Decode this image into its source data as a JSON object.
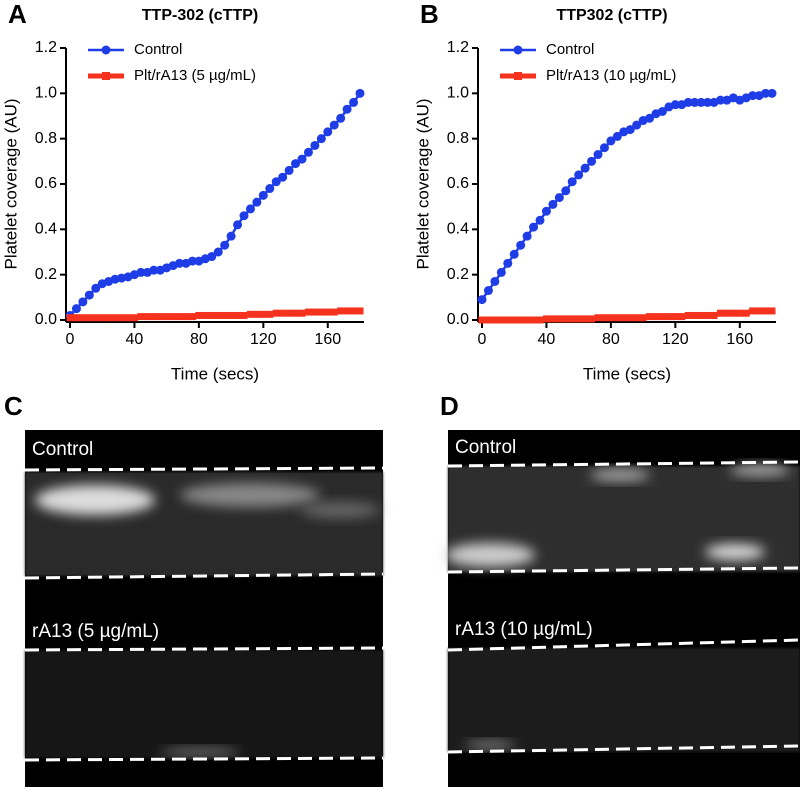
{
  "chart_data": [
    {
      "type": "line",
      "label": "A",
      "title": "TTP-302 (cTTP)",
      "xlabel": "Time (secs)",
      "ylabel": "Platelet coverage (AU)",
      "x": [
        0,
        4,
        8,
        12,
        16,
        20,
        24,
        28,
        32,
        36,
        40,
        44,
        48,
        52,
        56,
        60,
        64,
        68,
        72,
        76,
        80,
        84,
        88,
        92,
        96,
        100,
        104,
        108,
        112,
        116,
        120,
        124,
        128,
        132,
        136,
        140,
        144,
        148,
        152,
        156,
        160,
        164,
        168,
        172,
        176,
        180
      ],
      "series": [
        {
          "name": "Control",
          "color": "#1f3de6",
          "values": [
            0.02,
            0.05,
            0.08,
            0.11,
            0.14,
            0.16,
            0.17,
            0.18,
            0.185,
            0.19,
            0.2,
            0.21,
            0.21,
            0.22,
            0.22,
            0.23,
            0.24,
            0.25,
            0.25,
            0.26,
            0.26,
            0.27,
            0.28,
            0.3,
            0.33,
            0.37,
            0.42,
            0.46,
            0.49,
            0.52,
            0.55,
            0.58,
            0.61,
            0.63,
            0.66,
            0.69,
            0.71,
            0.74,
            0.77,
            0.8,
            0.83,
            0.86,
            0.89,
            0.93,
            0.96,
            1.0
          ]
        },
        {
          "name": "Plt/rA13 (5 µg/mL)",
          "color": "#f5321e",
          "values": [
            0.01,
            0.01,
            0.01,
            0.01,
            0.01,
            0.01,
            0.01,
            0.01,
            0.01,
            0.01,
            0.01,
            0.015,
            0.015,
            0.015,
            0.015,
            0.015,
            0.015,
            0.015,
            0.015,
            0.015,
            0.02,
            0.02,
            0.02,
            0.02,
            0.02,
            0.02,
            0.02,
            0.02,
            0.025,
            0.025,
            0.025,
            0.025,
            0.03,
            0.03,
            0.03,
            0.03,
            0.03,
            0.035,
            0.035,
            0.035,
            0.035,
            0.035,
            0.04,
            0.04,
            0.04,
            0.04
          ]
        }
      ],
      "xlim": [
        0,
        180
      ],
      "ylim": [
        0,
        1.2
      ],
      "xticks": [
        0,
        40,
        80,
        120,
        160
      ],
      "yticks": [
        {
          "value": 0,
          "label": "0.0"
        },
        {
          "value": 0.2,
          "label": "0.2"
        },
        {
          "value": 0.4,
          "label": "0.4"
        },
        {
          "value": 0.6,
          "label": "0.6"
        },
        {
          "value": 0.8,
          "label": "0.8"
        },
        {
          "value": 1,
          "label": "1.0"
        },
        {
          "value": 1.2,
          "label": "1.2"
        }
      ]
    },
    {
      "type": "line",
      "label": "B",
      "title": "TTP302 (cTTP)",
      "xlabel": "Time (secs)",
      "ylabel": "Platelet coverage (AU)",
      "x": [
        0,
        4,
        8,
        12,
        16,
        20,
        24,
        28,
        32,
        36,
        40,
        44,
        48,
        52,
        56,
        60,
        64,
        68,
        72,
        76,
        80,
        84,
        88,
        92,
        96,
        100,
        104,
        108,
        112,
        116,
        120,
        124,
        128,
        132,
        136,
        140,
        144,
        148,
        152,
        156,
        160,
        164,
        168,
        172,
        176,
        180
      ],
      "series": [
        {
          "name": "Control",
          "color": "#1f3de6",
          "values": [
            0.09,
            0.13,
            0.17,
            0.21,
            0.25,
            0.29,
            0.33,
            0.37,
            0.41,
            0.44,
            0.48,
            0.51,
            0.54,
            0.57,
            0.61,
            0.64,
            0.67,
            0.7,
            0.73,
            0.76,
            0.79,
            0.81,
            0.83,
            0.84,
            0.86,
            0.88,
            0.89,
            0.91,
            0.92,
            0.94,
            0.95,
            0.95,
            0.96,
            0.96,
            0.96,
            0.96,
            0.96,
            0.97,
            0.97,
            0.98,
            0.97,
            0.98,
            0.99,
            0.99,
            1.0,
            1.0
          ]
        },
        {
          "name": "Plt/rA13 (10 µg/mL)",
          "color": "#f5321e",
          "values": [
            0,
            0,
            0,
            0,
            0,
            0,
            0,
            0,
            0,
            0,
            0.005,
            0.005,
            0.005,
            0.005,
            0.005,
            0.005,
            0.005,
            0.005,
            0.01,
            0.01,
            0.01,
            0.01,
            0.01,
            0.01,
            0.01,
            0.01,
            0.015,
            0.015,
            0.015,
            0.015,
            0.015,
            0.015,
            0.02,
            0.02,
            0.02,
            0.02,
            0.02,
            0.03,
            0.03,
            0.03,
            0.03,
            0.03,
            0.04,
            0.04,
            0.04,
            0.04
          ]
        }
      ],
      "xlim": [
        0,
        180
      ],
      "ylim": [
        0,
        1.2
      ],
      "xticks": [
        0,
        40,
        80,
        120,
        160
      ],
      "yticks": [
        {
          "value": 0,
          "label": "0.0"
        },
        {
          "value": 0.2,
          "label": "0.2"
        },
        {
          "value": 0.4,
          "label": "0.4"
        },
        {
          "value": 0.6,
          "label": "0.6"
        },
        {
          "value": 0.8,
          "label": "0.8"
        },
        {
          "value": 1,
          "label": "1.0"
        },
        {
          "value": 1.2,
          "label": "1.2"
        }
      ]
    }
  ],
  "images": [
    {
      "label": "C",
      "captions": [
        "Control",
        "rA13 (5 µg/mL)"
      ]
    },
    {
      "label": "D",
      "captions": [
        "Control",
        "rA13 (10 µg/mL)"
      ]
    }
  ]
}
